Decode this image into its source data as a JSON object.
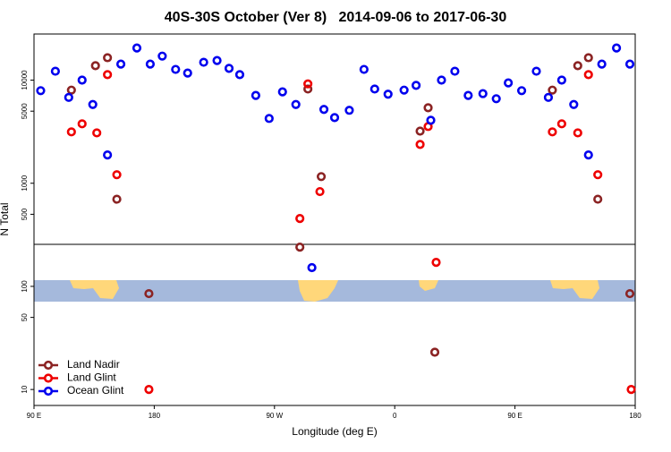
{
  "chart_data": {
    "type": "scatter",
    "title": "40S-30S October (Ver 8)   2014-09-06 to 2017-06-30",
    "x_label": "Longitude (deg E)",
    "y_label": "N Total",
    "xlim": [
      90,
      540
    ],
    "xticks": [
      {
        "value": 90,
        "label": "90 E"
      },
      180,
      {
        "value": 270,
        "label": "90 W"
      },
      {
        "value": 360,
        "label": "0"
      },
      {
        "value": 450,
        "label": "90 E"
      },
      {
        "value": 540,
        "label": "180"
      }
    ],
    "ylim": [
      7,
      28000
    ],
    "y_log": true,
    "yticks": [
      10,
      50,
      100,
      500,
      1000,
      5000,
      10000
    ],
    "legend": "bottom-left",
    "series": [
      {
        "name": "Land Nadir",
        "color": "#8b2323",
        "x": [
          118,
          136,
          145,
          152,
          176,
          289,
          295,
          305,
          379,
          385,
          390,
          478,
          497,
          505,
          512,
          536
        ],
        "values": [
          8000,
          13800,
          16500,
          700,
          85,
          240,
          8200,
          1160,
          3200,
          5400,
          23,
          8000,
          13800,
          16500,
          700,
          85
        ]
      },
      {
        "name": "Land Glint",
        "color": "#ee0000",
        "x": [
          118,
          126,
          137,
          145,
          152,
          176,
          289,
          295,
          304,
          379,
          385,
          391,
          478,
          485,
          497,
          505,
          512,
          537
        ],
        "values": [
          3150,
          3770,
          3080,
          11300,
          1210,
          10,
          455,
          9200,
          830,
          2380,
          3550,
          171,
          3150,
          3770,
          3080,
          11300,
          1210,
          10
        ]
      },
      {
        "name": "Ocean Glint",
        "color": "#0000ee",
        "x": [
          95,
          106,
          116,
          126,
          134,
          145,
          155,
          167,
          177,
          186,
          196,
          205,
          217,
          227,
          236,
          244,
          256,
          266,
          276,
          286,
          298,
          307,
          315,
          326,
          337,
          345,
          355,
          367,
          376,
          387,
          395,
          405,
          415,
          426,
          436,
          445,
          455,
          466,
          475,
          485,
          494,
          505,
          515,
          526,
          536
        ],
        "values": [
          7900,
          12200,
          6800,
          10000,
          5800,
          1880,
          14300,
          20500,
          14300,
          17100,
          12700,
          11700,
          14900,
          15500,
          13000,
          11300,
          7100,
          4250,
          7700,
          5800,
          152,
          5200,
          4330,
          5100,
          12700,
          8200,
          7300,
          8000,
          8900,
          4080,
          10000,
          12200,
          7100,
          7400,
          6600,
          9400,
          7900,
          12200,
          6800,
          10000,
          5800,
          1880,
          14300,
          20500,
          14300
        ]
      }
    ]
  }
}
